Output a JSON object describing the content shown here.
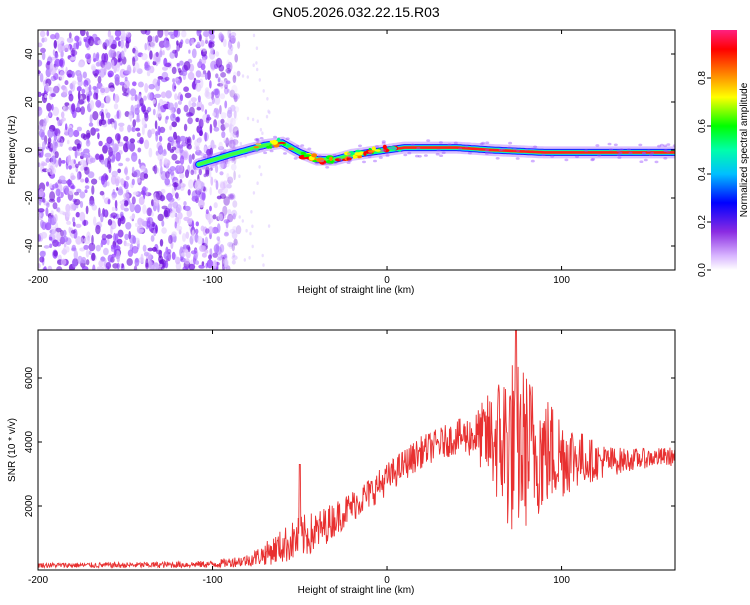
{
  "title": "GN05.2026.032.22.15.R03",
  "chart_data": [
    {
      "type": "heatmap",
      "title": "GN05.2026.032.22.15.R03",
      "xlabel": "Height of straight line (km)",
      "ylabel": "Frequency (Hz)",
      "xlim": [
        -200,
        165
      ],
      "ylim": [
        -50,
        50
      ],
      "xticks": [
        -200,
        -100,
        0,
        100
      ],
      "yticks": [
        -40,
        -20,
        0,
        20,
        40
      ],
      "noise_region": {
        "x_range": [
          -200,
          -85
        ],
        "y_range": [
          -50,
          50
        ]
      },
      "signal_track": [
        {
          "x": -108,
          "y": -6
        },
        {
          "x": -90,
          "y": -2
        },
        {
          "x": -80,
          "y": 0
        },
        {
          "x": -70,
          "y": 2
        },
        {
          "x": -60,
          "y": 3
        },
        {
          "x": -50,
          "y": -1
        },
        {
          "x": -40,
          "y": -4
        },
        {
          "x": -30,
          "y": -4
        },
        {
          "x": -20,
          "y": -2
        },
        {
          "x": -10,
          "y": -1
        },
        {
          "x": 0,
          "y": 0
        },
        {
          "x": 10,
          "y": 1
        },
        {
          "x": 40,
          "y": 1
        },
        {
          "x": 60,
          "y": 0
        },
        {
          "x": 90,
          "y": -1
        },
        {
          "x": 130,
          "y": -1
        },
        {
          "x": 165,
          "y": -1
        }
      ],
      "colorbar": {
        "label": "Normalized spectral amplitude",
        "ticks": [
          0.0,
          0.2,
          0.4,
          0.6,
          0.8
        ],
        "range": [
          0,
          1
        ],
        "colors": [
          "#ffffff",
          "#8a2be2",
          "#0000ff",
          "#00ffff",
          "#00ff00",
          "#ffff00",
          "#ff8000",
          "#ff0000",
          "#ff1493"
        ]
      }
    },
    {
      "type": "line",
      "xlabel": "Height of straight line (km)",
      "ylabel": "SNR (10 * v/v)",
      "xlim": [
        -200,
        165
      ],
      "ylim": [
        0,
        7500
      ],
      "xticks": [
        -200,
        -100,
        0,
        100
      ],
      "yticks": [
        2000,
        4000,
        6000
      ],
      "series": [
        {
          "name": "SNR",
          "color": "#e83030",
          "envelope": [
            {
              "x": -200,
              "mean": 150,
              "amp": 80
            },
            {
              "x": -150,
              "mean": 150,
              "amp": 90
            },
            {
              "x": -100,
              "mean": 180,
              "amp": 110
            },
            {
              "x": -80,
              "mean": 300,
              "amp": 200
            },
            {
              "x": -70,
              "mean": 500,
              "amp": 350
            },
            {
              "x": -60,
              "mean": 750,
              "amp": 550
            },
            {
              "x": -50,
              "mean": 1000,
              "amp": 700
            },
            {
              "x": -40,
              "mean": 1200,
              "amp": 650
            },
            {
              "x": -30,
              "mean": 1600,
              "amp": 550
            },
            {
              "x": -20,
              "mean": 2000,
              "amp": 500
            },
            {
              "x": -10,
              "mean": 2400,
              "amp": 500
            },
            {
              "x": 0,
              "mean": 2850,
              "amp": 500
            },
            {
              "x": 10,
              "mean": 3300,
              "amp": 500
            },
            {
              "x": 20,
              "mean": 3700,
              "amp": 500
            },
            {
              "x": 30,
              "mean": 3950,
              "amp": 500
            },
            {
              "x": 40,
              "mean": 4150,
              "amp": 550
            },
            {
              "x": 50,
              "mean": 4200,
              "amp": 700
            },
            {
              "x": 60,
              "mean": 4100,
              "amp": 1600
            },
            {
              "x": 70,
              "mean": 3900,
              "amp": 2900
            },
            {
              "x": 80,
              "mean": 3800,
              "amp": 2500
            },
            {
              "x": 90,
              "mean": 3700,
              "amp": 1900
            },
            {
              "x": 100,
              "mean": 3600,
              "amp": 1400
            },
            {
              "x": 110,
              "mean": 3500,
              "amp": 900
            },
            {
              "x": 120,
              "mean": 3400,
              "amp": 600
            },
            {
              "x": 130,
              "mean": 3400,
              "amp": 450
            },
            {
              "x": 140,
              "mean": 3450,
              "amp": 350
            },
            {
              "x": 150,
              "mean": 3500,
              "amp": 300
            },
            {
              "x": 165,
              "mean": 3550,
              "amp": 300
            }
          ],
          "peak": {
            "x": 74,
            "y": 7600
          }
        }
      ]
    }
  ]
}
